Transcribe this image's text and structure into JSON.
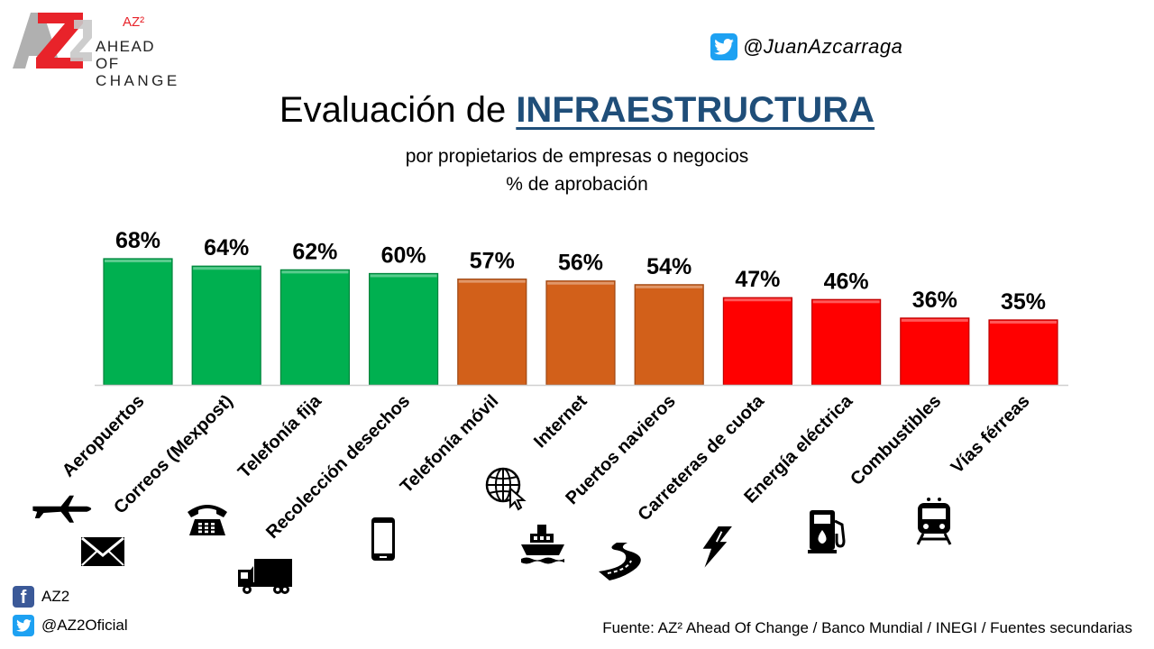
{
  "header": {
    "logo_superscript": "AZ²",
    "logo_line1": "AHEAD OF",
    "logo_line2": "CHANGE",
    "twitter_handle": "@JuanAzcarraga"
  },
  "title_prefix": "Evaluación de ",
  "title_emphasis": "INFRAESTRUCTURA",
  "subtitle_line1": "por propietarios de empresas o negocios",
  "subtitle_line2": "% de aprobación",
  "chart_data": {
    "type": "bar",
    "categories": [
      "Aeropuertos",
      "Correos (Mexpost)",
      "Telefonía fija",
      "Recolección desechos",
      "Telefonía móvil",
      "Internet",
      "Puertos navieros",
      "Carreteras de cuota",
      "Energía eléctrica",
      "Combustibles",
      "Vías férreas"
    ],
    "values": [
      68,
      64,
      62,
      60,
      57,
      56,
      54,
      47,
      46,
      36,
      35
    ],
    "value_labels": [
      "68%",
      "64%",
      "62%",
      "60%",
      "57%",
      "56%",
      "54%",
      "47%",
      "46%",
      "36%",
      "35%"
    ],
    "bar_colors": [
      "#00b050",
      "#00b050",
      "#00b050",
      "#00b050",
      "#d2601a",
      "#d2601a",
      "#d2601a",
      "#ff0000",
      "#ff0000",
      "#ff0000",
      "#ff0000"
    ],
    "icons": [
      "airplane-icon",
      "envelope-icon",
      "telephone-icon",
      "truck-icon",
      "mobile-phone-icon",
      "globe-cursor-icon",
      "ship-icon",
      "road-icon",
      "lightning-icon",
      "fuel-pump-icon",
      "train-icon"
    ],
    "ylim": [
      0,
      68
    ],
    "grid": false,
    "legend": "none"
  },
  "footer": {
    "facebook_label": "AZ2",
    "twitter_label": "@AZ2Oficial",
    "source": "Fuente: AZ² Ahead Of Change / Banco Mundial / INEGI / Fuentes secundarias"
  }
}
